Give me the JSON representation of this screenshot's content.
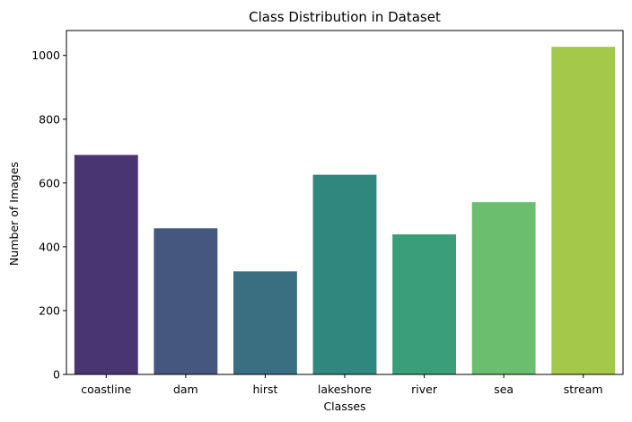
{
  "chart_data": {
    "type": "bar",
    "title": "Class Distribution in Dataset",
    "xlabel": "Classes",
    "ylabel": "Number of Images",
    "categories": [
      "coastline",
      "dam",
      "hirst",
      "lakeshore",
      "river",
      "sea",
      "stream"
    ],
    "values": [
      688,
      458,
      323,
      626,
      439,
      540,
      1027
    ],
    "colors": [
      "#4a3573",
      "#45577f",
      "#3a6f82",
      "#30877d",
      "#3a9e7a",
      "#6abe6e",
      "#a4c84a"
    ],
    "ylim": [
      0,
      1078
    ],
    "yticks": [
      0,
      200,
      400,
      600,
      800,
      1000
    ],
    "grid": false,
    "legend": false
  }
}
